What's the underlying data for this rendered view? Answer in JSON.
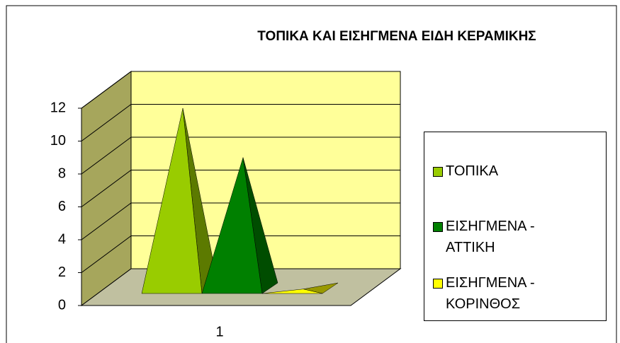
{
  "chart_data": {
    "type": "pyramid3d",
    "title": "ΤΟΠΙΚΑ ΚΑΙ ΕΙΣΗΓΜΕΝΑ ΕΙΔΗ ΚΕΡΑΜΙΚΗΣ",
    "categories": [
      "1"
    ],
    "series": [
      {
        "name": "ΤΟΠΙΚΑ",
        "color": "#99cc00",
        "values": [
          12
        ]
      },
      {
        "name": "ΕΙΣΗΓΜΕΝΑ - ΑΤΤΙΚΗ",
        "color": "#008000",
        "values": [
          9
        ]
      },
      {
        "name": "ΕΙΣΗΓΜΕΝΑ - ΚΟΡΙΝΘΟΣ",
        "color": "#ffff00",
        "values": [
          1
        ]
      }
    ],
    "ylim": [
      0,
      12
    ],
    "yticks": [
      0,
      2,
      4,
      6,
      8,
      10,
      12
    ],
    "grid": true,
    "legend": "right"
  }
}
